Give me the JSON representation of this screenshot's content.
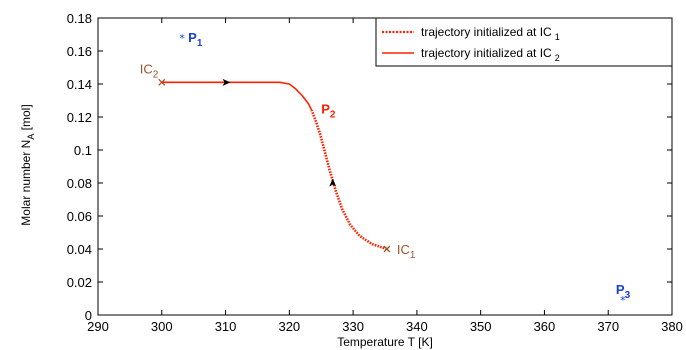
{
  "chart_data": {
    "type": "line",
    "xlabel": "Temperature T [K]",
    "ylabel_main": "Molar number N",
    "ylabel_sub": "A",
    "ylabel_unit": " [mol]",
    "xlim": [
      290,
      380
    ],
    "ylim": [
      0,
      0.18
    ],
    "xticks": [
      290,
      300,
      310,
      320,
      330,
      340,
      350,
      360,
      370,
      380
    ],
    "yticks": [
      0,
      0.02,
      0.04,
      0.06,
      0.08,
      0.1,
      0.12,
      0.14,
      0.16,
      0.18
    ],
    "ytick_labels": [
      "0",
      "0.02",
      "0.04",
      "0.06",
      "0.08",
      "0.1",
      "0.12",
      "0.14",
      "0.16",
      "0.18"
    ],
    "series": [
      {
        "name": "trajectory initialized at IC",
        "name_sub": "1",
        "style": "dotted",
        "color": "#ff2200",
        "x": [
          335.3,
          333,
          331,
          329.5,
          328.3,
          327.3,
          326.3,
          325.5,
          324.8,
          324.2,
          323.8,
          323.5
        ],
        "y": [
          0.04,
          0.043,
          0.048,
          0.055,
          0.064,
          0.075,
          0.088,
          0.1,
          0.11,
          0.117,
          0.121,
          0.124
        ]
      },
      {
        "name": "trajectory initialized at IC",
        "name_sub": "2",
        "style": "solid",
        "color": "#ff2200",
        "x": [
          300,
          305,
          310,
          315,
          318.5,
          320,
          321,
          322,
          323,
          323.5
        ],
        "y": [
          0.141,
          0.141,
          0.141,
          0.141,
          0.141,
          0.14,
          0.137,
          0.133,
          0.128,
          0.124
        ]
      }
    ],
    "markers": [
      {
        "label": "P",
        "sub": "1",
        "x": 303.2,
        "y": 0.168,
        "type": "star",
        "color": "#1a3fd6"
      },
      {
        "label": "P",
        "sub": "3",
        "x": 372.3,
        "y": 0.009,
        "type": "star",
        "color": "#1a3fd6"
      },
      {
        "label": "IC",
        "sub": "2",
        "x": 300,
        "y": 0.141,
        "type": "cross",
        "color": "#a0522d"
      },
      {
        "label": "IC",
        "sub": "1",
        "x": 335.3,
        "y": 0.04,
        "type": "cross",
        "color": "#a0522d"
      }
    ],
    "annotations": [
      {
        "label": "P",
        "sub": "2",
        "x": 325,
        "y": 0.122,
        "color": "#ff2200"
      }
    ],
    "arrows": [
      {
        "x": 310,
        "y": 0.141,
        "dir": "right"
      },
      {
        "x": 326.8,
        "y": 0.079,
        "dir": "up"
      }
    ],
    "legend_position": "top-right",
    "grid": false
  }
}
